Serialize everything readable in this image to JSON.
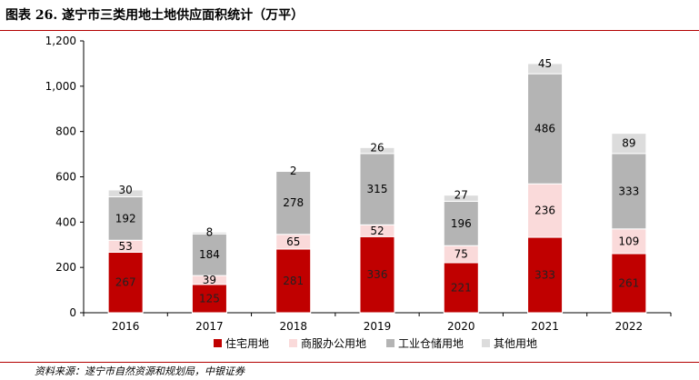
{
  "header": {
    "title": "图表 26. 遂宁市三类用地土地供应面积统计（万平）"
  },
  "footer": {
    "source": "资料来源：遂宁市自然资源和规划局，中银证券"
  },
  "colors": {
    "residential": "#c00000",
    "commercial": "#fadada",
    "industrial": "#b4b4b4",
    "other": "#dcdcdc",
    "rule": "#b30000"
  },
  "chart_data": {
    "type": "bar",
    "stacked": true,
    "title": "遂宁市三类用地土地供应面积统计（万平）",
    "categories": [
      "2016",
      "2017",
      "2018",
      "2019",
      "2020",
      "2021",
      "2022"
    ],
    "series": [
      {
        "name": "住宅用地",
        "values": [
          267,
          125,
          281,
          336,
          221,
          333,
          261
        ]
      },
      {
        "name": "商服办公用地",
        "values": [
          53,
          39,
          65,
          52,
          75,
          236,
          109
        ]
      },
      {
        "name": "工业仓储用地",
        "values": [
          192,
          184,
          278,
          315,
          196,
          486,
          333
        ]
      },
      {
        "name": "其他用地",
        "values": [
          30,
          8,
          2,
          26,
          27,
          45,
          89
        ]
      }
    ],
    "ylim": [
      0,
      1200
    ],
    "yticks": [
      "0",
      "200",
      "400",
      "600",
      "800",
      "1,000",
      "1,200"
    ],
    "ytick_values": [
      0,
      200,
      400,
      600,
      800,
      1000,
      1200
    ],
    "grid": false,
    "legend_position": "bottom"
  }
}
